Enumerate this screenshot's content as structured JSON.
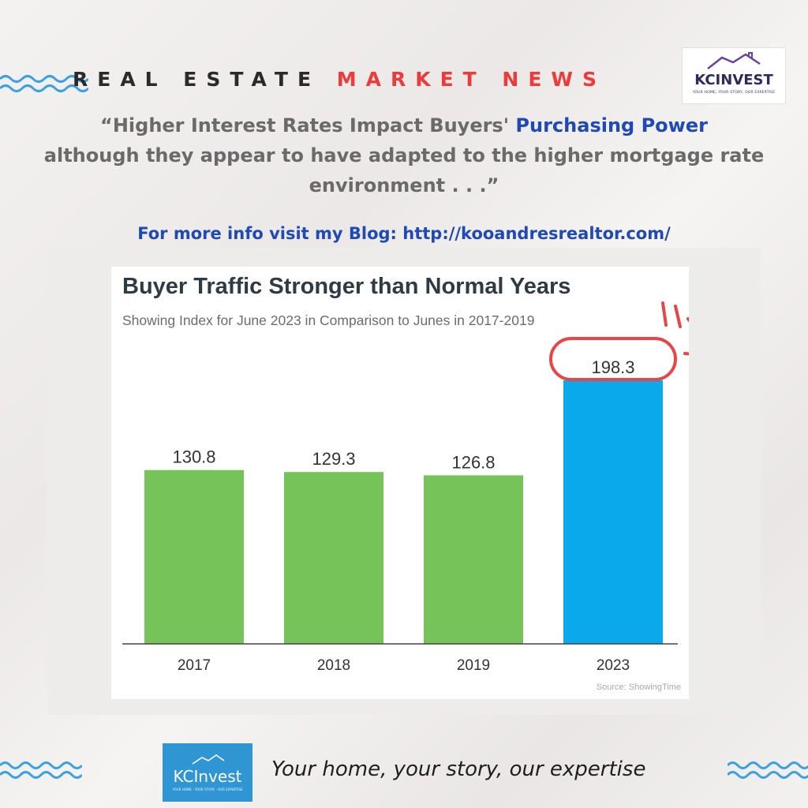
{
  "header": {
    "part1": "REAL ESTATE",
    "part2": "MARKET NEWS",
    "accent": "#ef3a3a"
  },
  "top_logo": {
    "name": "KCINVEST",
    "tagline": "YOUR HOME, YOUR STORY, OUR EXPERTISE"
  },
  "quote": {
    "line1_start": "“Higher Interest Rates Impact Buyers' ",
    "line1_highlight": "Purchasing Power",
    "line2": "although they appear to have adapted to the higher mortgage rate",
    "line3": "environment . . .”"
  },
  "blog": {
    "text": "For more info visit my Blog: http://kooandresrealtor.com/"
  },
  "chart_data": {
    "type": "bar",
    "title": "Buyer Traffic Stronger than Normal Years",
    "subtitle": "Showing Index for June 2023 in Comparison to Junes in 2017-2019",
    "categories": [
      "2017",
      "2018",
      "2019",
      "2023"
    ],
    "values": [
      130.8,
      129.3,
      126.8,
      198.3
    ],
    "value_labels": [
      "130.8",
      "129.3",
      "126.8",
      "198.3"
    ],
    "colors": [
      "#76c35a",
      "#76c35a",
      "#76c35a",
      "#09a9ec"
    ],
    "highlight_color": "#e84646",
    "source": "Source: ShowingTime",
    "ylim": [
      0,
      198.3
    ],
    "grid": false,
    "legend": "none"
  },
  "footer": {
    "logo_text": "KCInvest",
    "logo_tagline": "YOUR HOME · YOUR STORY · OUR EXPERTISE",
    "tagline": "Your home, your story, our expertise"
  }
}
